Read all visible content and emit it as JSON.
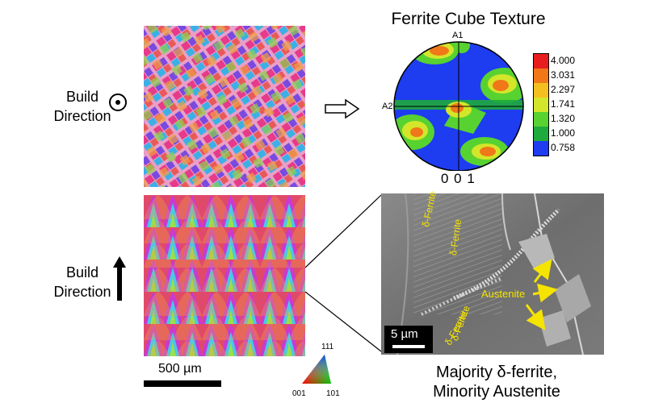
{
  "build_direction_top": {
    "line1": "Build",
    "line2": "Direction"
  },
  "build_direction_bottom": {
    "line1": "Build",
    "line2": "Direction"
  },
  "pole_figure": {
    "title": "Ferrite Cube Texture",
    "axis_top": "A1",
    "axis_left": "A2",
    "plane_label": "0 0 1",
    "legend": [
      {
        "value": "4.000",
        "color": "#e81e1e"
      },
      {
        "value": "3.031",
        "color": "#f07818"
      },
      {
        "value": "2.297",
        "color": "#f4c020"
      },
      {
        "value": "1.741",
        "color": "#d4e62a"
      },
      {
        "value": "1.320",
        "color": "#58d230"
      },
      {
        "value": "1.000",
        "color": "#1eaa3c"
      },
      {
        "value": "0.758",
        "color": "#1e3cf0"
      }
    ]
  },
  "scale_bar": {
    "label": "500 µm"
  },
  "ipf_key": {
    "top": "111",
    "left": "001",
    "right": "101"
  },
  "sem": {
    "labels": {
      "ferrite1": "δ-Ferrite",
      "ferrite2": "δ-Ferrite",
      "ferrite3": "δ-Ferrite",
      "ferrite4": "δ-Ferrite",
      "austenite": "Austenite"
    },
    "scale_label": "5 µm"
  },
  "caption": {
    "line1": "Majority δ-ferrite,",
    "line2": "Minority Austenite"
  },
  "colors": {
    "annotation": "#f5e400",
    "arrow": "#ffffff"
  }
}
